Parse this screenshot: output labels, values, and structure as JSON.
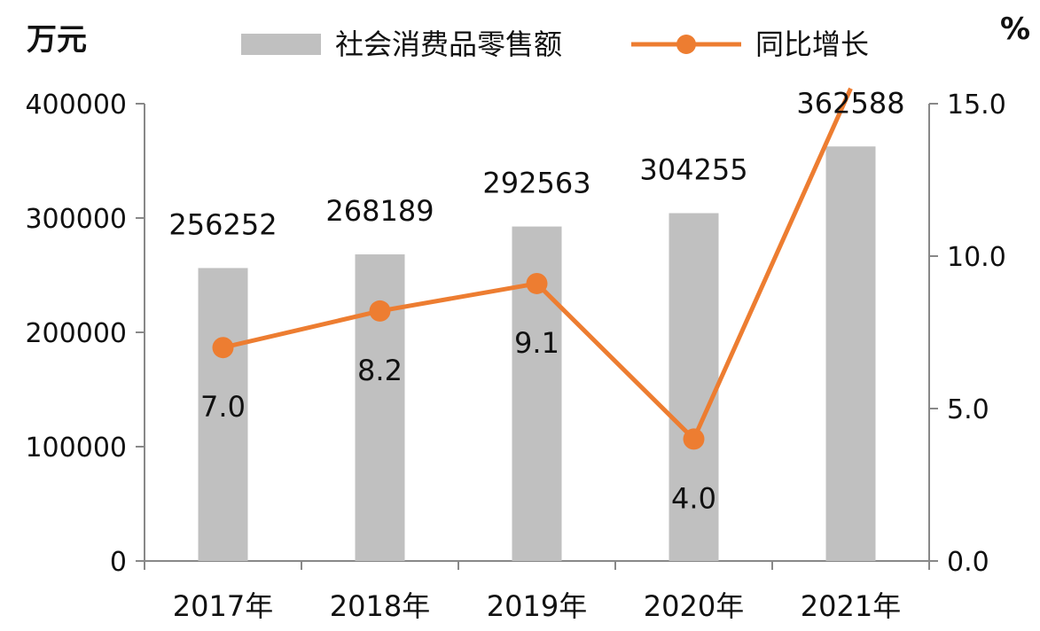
{
  "chart_data": {
    "type": "bar+line",
    "title": "",
    "categories": [
      "2017年",
      "2018年",
      "2019年",
      "2020年",
      "2021年"
    ],
    "y_left": {
      "unit": "万元",
      "ticks": [
        "0",
        "100000",
        "200000",
        "300000",
        "400000"
      ],
      "ylim": [
        0,
        400000
      ]
    },
    "y_right": {
      "unit": "%",
      "ticks": [
        "0.0",
        "5.0",
        "10.0",
        "15.0"
      ],
      "ylim": [
        0,
        15
      ]
    },
    "series": [
      {
        "name": "社会消费品零售额",
        "type": "bar",
        "axis": "left",
        "color": "#c0c0c0",
        "values": [
          256252,
          268189,
          292563,
          304255,
          362588
        ],
        "labels": [
          "256252",
          "268189",
          "292563",
          "304255",
          "362588"
        ]
      },
      {
        "name": "同比增长",
        "type": "line",
        "axis": "right",
        "color": "#ed7d31",
        "values": [
          7.0,
          8.2,
          9.1,
          4.0,
          15.5
        ],
        "labels": [
          "7.0",
          "8.2",
          "9.1",
          "4.0",
          ""
        ]
      }
    ],
    "legend_position": "top-center",
    "grid": false
  }
}
